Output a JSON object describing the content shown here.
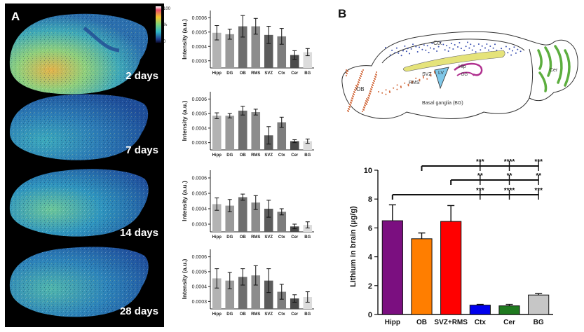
{
  "panel_a": {
    "label": "A",
    "colorbar": {
      "max_label": "100",
      "unit_label": "%",
      "min_label": "0"
    },
    "brain_images": [
      {
        "label": "2 days"
      },
      {
        "label": "7 days"
      },
      {
        "label": "14 days"
      },
      {
        "label": "28 days"
      }
    ],
    "colors": {
      "background": "#000000",
      "tissue_low": "#1e3f8f",
      "tissue_mid": "#2fb6c8",
      "tissue_high": "#f2c72e",
      "label_text": "#ffffff"
    }
  },
  "panel_b": {
    "label": "B",
    "diagram_labels": {
      "ctx": "Ctx",
      "ob": "OB",
      "rms": "RMS",
      "svz": "SVZ",
      "lv": "LV",
      "hip": "Hip",
      "dg": "DG",
      "basal_ganglia": "Basal ganglia (BG)",
      "cer": "Cer"
    },
    "colors": {
      "ctx_dots": "#3a4fb0",
      "ob_dots": "#d2693c",
      "hippocampus": "#b0308f",
      "ventricle": "#7fc7e8",
      "white_matter": "#e5e37a",
      "cerebellum": "#5dae3f"
    }
  },
  "chart_data": [
    {
      "type": "bar",
      "ylabel": "Intensity (a.u.)",
      "ylim": [
        0.00025,
        0.00065
      ],
      "yticks": [
        "0.0003",
        "0.0004",
        "0.0005",
        "0.0006"
      ],
      "categories": [
        "Hipp",
        "DG",
        "OB",
        "RMS",
        "SVZ",
        "Ctx",
        "Cer",
        "BG"
      ],
      "values": [
        0.000495,
        0.000485,
        0.00054,
        0.00054,
        0.00048,
        0.00047,
        0.00034,
        0.00036
      ],
      "errors": [
        5e-05,
        3.5e-05,
        7.5e-05,
        5.5e-05,
        6e-05,
        5.5e-05,
        3e-05,
        2.5e-05
      ],
      "colors": [
        "#b3b3b3",
        "#9a9a9a",
        "#6e6e6e",
        "#8c8c8c",
        "#5c5c5c",
        "#7d7d7d",
        "#4a4a4a",
        "#dcdcdc"
      ]
    },
    {
      "type": "bar",
      "ylabel": "Intensity (a.u.)",
      "ylim": [
        0.00025,
        0.00065
      ],
      "yticks": [
        "0.0003",
        "0.0004",
        "0.0005",
        "0.0006"
      ],
      "categories": [
        "Hipp",
        "DG",
        "OB",
        "RMS",
        "SVZ",
        "Ctx",
        "Cer",
        "BG"
      ],
      "values": [
        0.000485,
        0.000485,
        0.00052,
        0.00051,
        0.00035,
        0.00044,
        0.00031,
        0.00031
      ],
      "errors": [
        2e-05,
        1.5e-05,
        3e-05,
        2e-05,
        6e-05,
        3.5e-05,
        1e-05,
        1.5e-05
      ],
      "colors": [
        "#b3b3b3",
        "#9a9a9a",
        "#6e6e6e",
        "#8c8c8c",
        "#5c5c5c",
        "#7d7d7d",
        "#4a4a4a",
        "#dcdcdc"
      ]
    },
    {
      "type": "bar",
      "ylabel": "Intensity (a.u.)",
      "ylim": [
        0.00025,
        0.00065
      ],
      "yticks": [
        "0.0003",
        "0.0004",
        "0.0005",
        "0.0006"
      ],
      "categories": [
        "Hipp",
        "DG",
        "OB",
        "RMS",
        "SVZ",
        "Ctx",
        "Cer",
        "BG"
      ],
      "values": [
        0.00043,
        0.00042,
        0.000475,
        0.00044,
        0.0004,
        0.00038,
        0.000285,
        0.000295
      ],
      "errors": [
        4e-05,
        4e-05,
        2e-05,
        4.5e-05,
        5.5e-05,
        2e-05,
        1.5e-05,
        2e-05
      ],
      "colors": [
        "#b3b3b3",
        "#9a9a9a",
        "#6e6e6e",
        "#8c8c8c",
        "#5c5c5c",
        "#7d7d7d",
        "#4a4a4a",
        "#dcdcdc"
      ]
    },
    {
      "type": "bar",
      "ylabel": "Intensity (a.u.)",
      "ylim": [
        0.00025,
        0.00065
      ],
      "yticks": [
        "0.0003",
        "0.0004",
        "0.0005",
        "0.0006"
      ],
      "categories": [
        "Hipp",
        "DG",
        "OB",
        "RMS",
        "SVZ",
        "Ctx",
        "Cer",
        "BG"
      ],
      "values": [
        0.000455,
        0.00044,
        0.000465,
        0.000475,
        0.00044,
        0.000365,
        0.00032,
        0.00033
      ],
      "errors": [
        6.5e-05,
        5.5e-05,
        5.5e-05,
        6.5e-05,
        8e-05,
        5e-05,
        2.5e-05,
        3.5e-05
      ],
      "colors": [
        "#b3b3b3",
        "#9a9a9a",
        "#6e6e6e",
        "#8c8c8c",
        "#5c5c5c",
        "#7d7d7d",
        "#4a4a4a",
        "#dcdcdc"
      ]
    },
    {
      "type": "bar",
      "ylabel": "Lithium in brain (µg/g)",
      "ylim": [
        0,
        10
      ],
      "yticks": [
        "0",
        "2",
        "4",
        "6",
        "8",
        "10"
      ],
      "categories": [
        "Hipp",
        "OB",
        "SVZ+RMS",
        "Ctx",
        "Cer",
        "BG"
      ],
      "values": [
        6.5,
        5.25,
        6.45,
        0.65,
        0.6,
        1.35
      ],
      "errors": [
        1.1,
        0.4,
        1.1,
        0.05,
        0.1,
        0.1
      ],
      "colors": [
        "#7b0f80",
        "#ff7e00",
        "#ff0000",
        "#0000ee",
        "#1f7a1f",
        "#c6c6c6"
      ],
      "significance": [
        {
          "labels": [
            "***",
            "****",
            "***"
          ]
        },
        {
          "labels": [
            "**",
            "**",
            "**"
          ]
        },
        {
          "labels": [
            "***",
            "****",
            "***"
          ]
        }
      ]
    }
  ]
}
